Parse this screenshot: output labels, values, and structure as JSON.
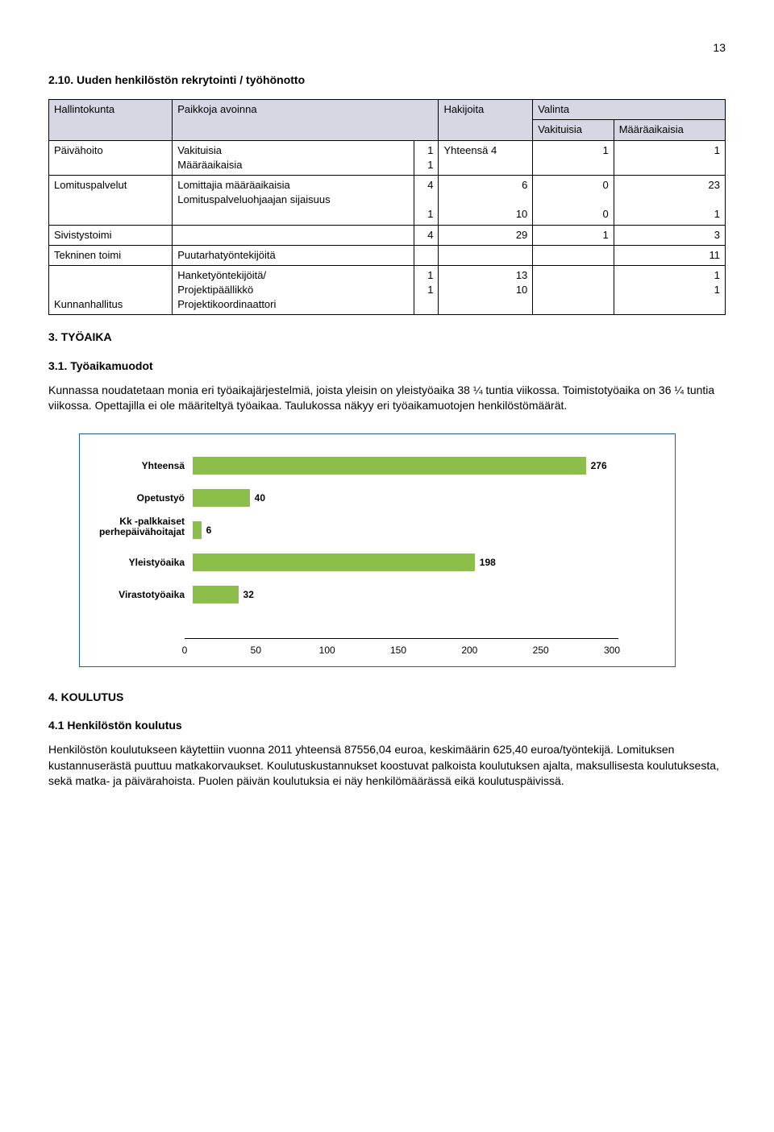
{
  "page_number": "13",
  "section_2_10": {
    "title": "2.10. Uuden henkilöstön rekrytointi / työhönotto",
    "table": {
      "headers": [
        "Hallintokunta",
        "Paikkoja avoinna",
        "Hakijoita",
        "Valinta"
      ],
      "subheaders_valinta": [
        "Vakituisia",
        "Määräaikaisia"
      ],
      "rows": [
        {
          "c0": "Päivähoito",
          "c1_a": "Vakituisia",
          "c1_b": "Määräaikaisia",
          "c2_a": "1",
          "c2_b": "1",
          "c3": "Yhteensä 4",
          "c4_a": "",
          "c4_b": "1",
          "c5_a": "",
          "c5_b": "1"
        },
        {
          "c0": "Lomituspalvelut",
          "c1_a": "Lomittajia määräaikaisia",
          "c1_b": "Lomituspalveluohjaajan sijaisuus",
          "c2_a": "4",
          "c2_b": "1",
          "c3_a": "6",
          "c3_b": "10",
          "c4_a": "0",
          "c4_b": "0",
          "c5_a": "23",
          "c5_b": "1"
        },
        {
          "c0": "Sivistystoimi",
          "c1": "",
          "c2": "4",
          "c3": "29",
          "c4": "1",
          "c5": "3"
        },
        {
          "c0": "Tekninen toimi",
          "c1": "Puutarhatyöntekijöitä",
          "c2": "",
          "c3": "",
          "c4": "",
          "c5": "11"
        },
        {
          "c0": "Kunnanhallitus",
          "c1_a": "Hanketyöntekijöitä/",
          "c1_b": "Projektipäällikkö",
          "c1_c": "Projektikoordinaattori",
          "c2_a": "",
          "c2_b": "1",
          "c2_c": "1",
          "c3_a": "",
          "c3_b": "13",
          "c3_c": "10",
          "c4": "",
          "c5_a": "",
          "c5_b": "1",
          "c5_c": "1"
        }
      ]
    }
  },
  "section_3": {
    "title": "3. TYÖAIKA",
    "sub_3_1": {
      "title": "3.1. Työaikamuodot",
      "para": "Kunnassa noudatetaan monia eri työaikajärjestelmiä, joista yleisin on yleistyöaika 38 ¼ tuntia viikossa. Toimistotyöaika on 36 ¼ tuntia viikossa. Opettajilla ei ole määriteltyä työaikaa. Taulukossa näkyy eri työaikamuotojen henkilöstömäärät."
    }
  },
  "chart": {
    "type": "bar-horizontal",
    "x_max": 300,
    "x_ticks": [
      0,
      50,
      100,
      150,
      200,
      250,
      300
    ],
    "bar_color": "#8bbf4a",
    "border_color": "#1f5ea8",
    "series": [
      {
        "label": "Yhteensä",
        "value": 276
      },
      {
        "label": "Opetustyö",
        "value": 40
      },
      {
        "label": "Kk -palkkaiset perhepäivähoitajat",
        "value": 6,
        "multiline": true
      },
      {
        "label": "Yleistyöaika",
        "value": 198
      },
      {
        "label": "Virastotyöaika",
        "value": 32
      }
    ]
  },
  "section_4": {
    "title": "4. KOULUTUS",
    "sub_4_1": {
      "title": "4.1 Henkilöstön koulutus",
      "para": "Henkilöstön koulutukseen käytettiin vuonna 2011 yhteensä 87556,04 euroa, keskimäärin 625,40 euroa/työntekijä. Lomituksen kustannuserästä puuttuu matkakorvaukset. Koulutuskustannukset koostuvat palkoista koulutuksen ajalta, maksullisesta koulutuksesta, sekä matka- ja päivärahoista. Puolen päivän koulutuksia ei näy henkilömäärässä eikä koulutuspäivissä."
    }
  }
}
